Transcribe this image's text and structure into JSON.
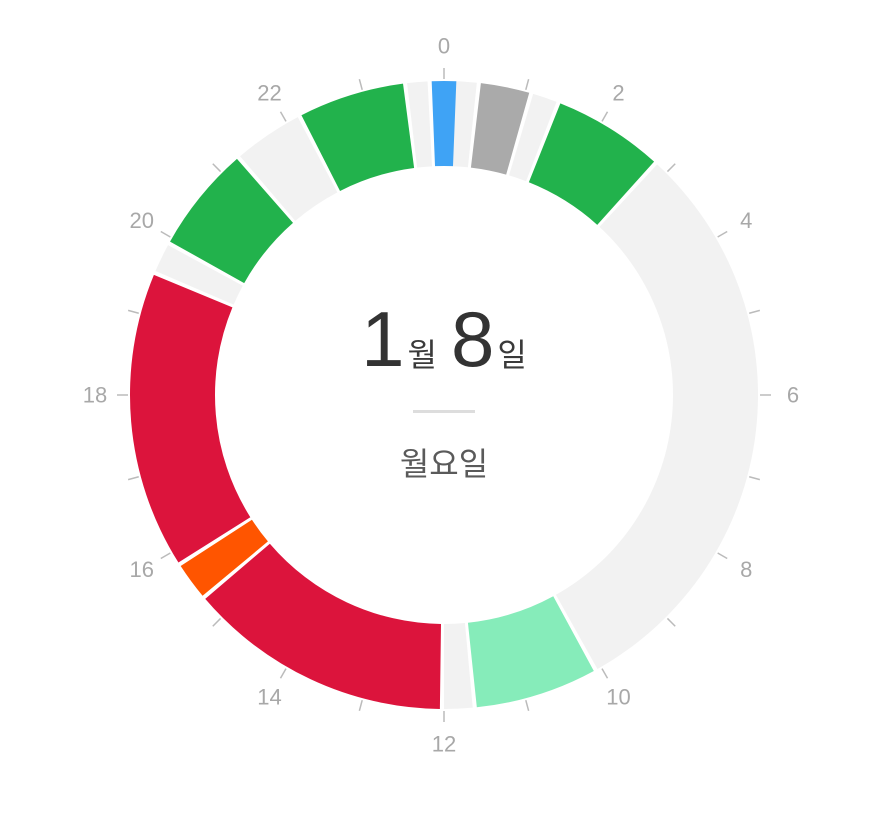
{
  "date": {
    "month": "1",
    "month_unit": "월",
    "day": "8",
    "day_unit": "일",
    "weekday": "월요일"
  },
  "hour_labels": [
    "0",
    "2",
    "4",
    "6",
    "8",
    "10",
    "12",
    "14",
    "16",
    "18",
    "20",
    "22"
  ],
  "colors": {
    "track": "#f2f2f2",
    "green": "#22b24c",
    "red": "#dc143c",
    "orange": "#ff5500",
    "mint": "#86ecba",
    "gray": "#aaaaaa",
    "blue": "#3fa3f5",
    "tick": "#bbbbbb",
    "label": "#a8a8a8"
  },
  "chart_data": {
    "type": "donut",
    "unit": "hour",
    "range": [
      0,
      24
    ],
    "segments": [
      {
        "start": 0.0,
        "end": 0.4,
        "color": "#f2f2f2"
      },
      {
        "start": 0.45,
        "end": 1.05,
        "color": "#aaaaaa"
      },
      {
        "start": 1.1,
        "end": 1.4,
        "color": "#f2f2f2"
      },
      {
        "start": 1.45,
        "end": 2.8,
        "color": "#22b24c"
      },
      {
        "start": 2.85,
        "end": 10.05,
        "color": "#f2f2f2"
      },
      {
        "start": 10.1,
        "end": 11.6,
        "color": "#86ecba"
      },
      {
        "start": 11.65,
        "end": 12.0,
        "color": "#f2f2f2"
      },
      {
        "start": 12.05,
        "end": 15.3,
        "color": "#dc143c"
      },
      {
        "start": 15.35,
        "end": 15.8,
        "color": "#ff5500"
      },
      {
        "start": 15.85,
        "end": 19.5,
        "color": "#dc143c"
      },
      {
        "start": 19.55,
        "end": 19.9,
        "color": "#f2f2f2"
      },
      {
        "start": 19.95,
        "end": 21.25,
        "color": "#22b24c"
      },
      {
        "start": 21.3,
        "end": 22.15,
        "color": "#f2f2f2"
      },
      {
        "start": 22.2,
        "end": 23.5,
        "color": "#22b24c"
      },
      {
        "start": 23.55,
        "end": 23.8,
        "color": "#f2f2f2"
      },
      {
        "start": 23.85,
        "end": 24.15,
        "color": "#3fa3f5"
      }
    ]
  }
}
